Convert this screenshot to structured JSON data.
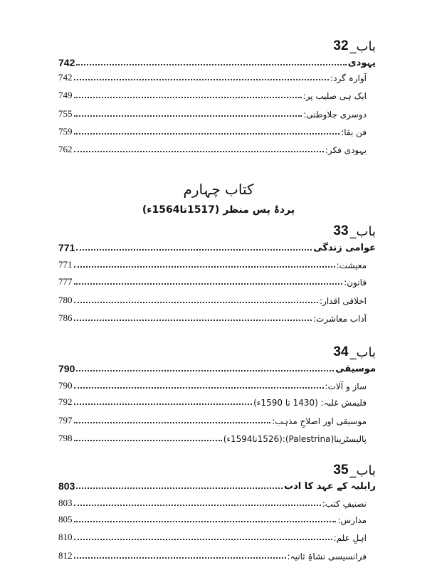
{
  "book_title": "کتاب چہارم",
  "book_subtitle": "پردۂ پس منظر (1517تا1564ء)",
  "chapters": [
    {
      "label": "باب_",
      "number": "32",
      "main": {
        "title": "یہودی",
        "page": "742"
      },
      "entries": [
        {
          "title": "آوارہ گرد:",
          "page": "742"
        },
        {
          "title": "ایک ہی صلیب پر:",
          "page": "749"
        },
        {
          "title": "دوسری جلاوطنی:",
          "page": "755"
        },
        {
          "title": "فن بقا:",
          "page": "759"
        },
        {
          "title": "یہودی فکر:",
          "page": "762"
        }
      ]
    },
    {
      "label": "باب_",
      "number": "33",
      "main": {
        "title": "عوامی زندگی",
        "page": "771"
      },
      "entries": [
        {
          "title": "معیشت:",
          "page": "771"
        },
        {
          "title": "قانون:",
          "page": "777"
        },
        {
          "title": "اخلاقی اقدار:",
          "page": "780"
        },
        {
          "title": "آداب معاشرت:",
          "page": "786"
        }
      ]
    },
    {
      "label": "باب_",
      "number": "34",
      "main": {
        "title": "موسیقی",
        "page": "790"
      },
      "entries": [
        {
          "title": "ساز و آلات:",
          "page": "790"
        },
        {
          "title": "فلیمش غلبہ: (1430 تا 1590ء)",
          "page": "792"
        },
        {
          "title": "موسیقی اور اصلاحِ مذہب:",
          "page": "797"
        },
        {
          "title": "پالیسٹرینا(Palestrina):(1526تا1594ء)",
          "page": "798"
        }
      ]
    },
    {
      "label": "باب_",
      "number": "35",
      "main": {
        "title": "رابلیہ کے عہد کا ادب",
        "page": "803"
      },
      "entries": [
        {
          "title": "تصنیفِ کتب:",
          "page": "803"
        },
        {
          "title": "مدارس:",
          "page": "805"
        },
        {
          "title": "اہلِ علم:",
          "page": "810"
        },
        {
          "title": "فرانسیسی نشاۃِ ثانیہ:",
          "page": "812"
        }
      ]
    }
  ]
}
